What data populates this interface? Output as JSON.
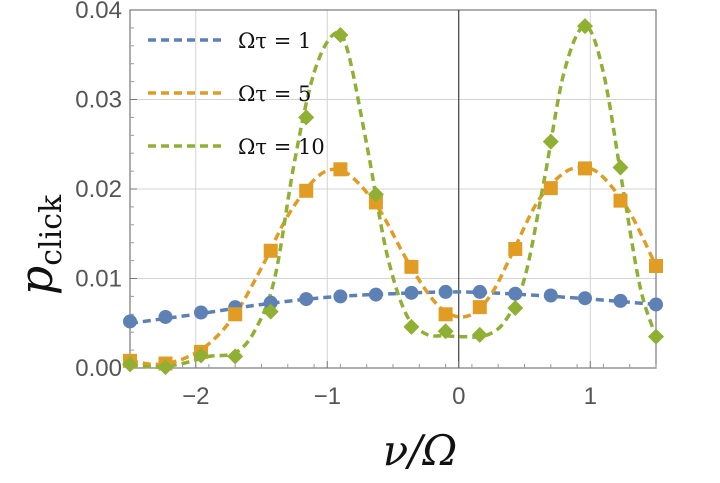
{
  "chart_data": {
    "type": "line",
    "title": "",
    "xlabel": "ν/Ω",
    "ylabel": "p",
    "ylabel_subscript": "click",
    "xlim": [
      -2.5,
      1.5
    ],
    "ylim": [
      0.0,
      0.04
    ],
    "xticks": [
      -2,
      -1,
      0,
      1
    ],
    "xtick_labels": [
      "−2",
      "−1",
      "0",
      "1"
    ],
    "yticks": [
      0.0,
      0.01,
      0.02,
      0.03,
      0.04
    ],
    "ytick_labels": [
      "0.00",
      "0.01",
      "0.02",
      "0.03",
      "0.04"
    ],
    "grid": true,
    "legend_position": "top-left",
    "series": [
      {
        "name": "Ωτ = 1",
        "color": "#5d81b4",
        "marker": "circle",
        "points": [
          [
            -2.5,
            0.0052
          ],
          [
            -2.23,
            0.0057
          ],
          [
            -1.96,
            0.0062
          ],
          [
            -1.7,
            0.0068
          ],
          [
            -1.43,
            0.0073
          ],
          [
            -1.16,
            0.0077
          ],
          [
            -0.9,
            0.008
          ],
          [
            -0.63,
            0.0082
          ],
          [
            -0.36,
            0.0084
          ],
          [
            -0.1,
            0.0085
          ],
          [
            0.16,
            0.0085
          ],
          [
            0.43,
            0.0083
          ],
          [
            0.7,
            0.0081
          ],
          [
            0.96,
            0.0078
          ],
          [
            1.23,
            0.0075
          ],
          [
            1.5,
            0.0071
          ]
        ],
        "curve": [
          [
            -2.5,
            0.005
          ],
          [
            -2.0,
            0.006
          ],
          [
            -1.5,
            0.0071
          ],
          [
            -1.0,
            0.0079
          ],
          [
            -0.5,
            0.0083
          ],
          [
            0.0,
            0.0085
          ],
          [
            0.5,
            0.0082
          ],
          [
            1.0,
            0.0077
          ],
          [
            1.5,
            0.0071
          ]
        ]
      },
      {
        "name": "Ωτ = 5",
        "color": "#e19c24",
        "marker": "square",
        "points": [
          [
            -2.5,
            0.0008
          ],
          [
            -2.23,
            0.0005
          ],
          [
            -1.96,
            0.0018
          ],
          [
            -1.7,
            0.006
          ],
          [
            -1.43,
            0.0131
          ],
          [
            -1.16,
            0.0198
          ],
          [
            -0.9,
            0.0222
          ],
          [
            -0.63,
            0.0185
          ],
          [
            -0.36,
            0.0113
          ],
          [
            -0.1,
            0.006
          ],
          [
            0.16,
            0.0068
          ],
          [
            0.43,
            0.0133
          ],
          [
            0.7,
            0.0201
          ],
          [
            0.96,
            0.0223
          ],
          [
            1.23,
            0.0187
          ],
          [
            1.5,
            0.0114
          ]
        ],
        "curve": [
          [
            -2.5,
            0.0008
          ],
          [
            -2.3,
            0.0004
          ],
          [
            -2.1,
            0.001
          ],
          [
            -1.9,
            0.0027
          ],
          [
            -1.7,
            0.006
          ],
          [
            -1.5,
            0.0112
          ],
          [
            -1.3,
            0.017
          ],
          [
            -1.1,
            0.021
          ],
          [
            -0.95,
            0.0222
          ],
          [
            -0.8,
            0.0212
          ],
          [
            -0.6,
            0.0176
          ],
          [
            -0.4,
            0.0122
          ],
          [
            -0.2,
            0.0077
          ],
          [
            -0.05,
            0.0059
          ],
          [
            0.1,
            0.006
          ],
          [
            0.25,
            0.0083
          ],
          [
            0.4,
            0.0126
          ],
          [
            0.6,
            0.0186
          ],
          [
            0.8,
            0.0218
          ],
          [
            0.96,
            0.0224
          ],
          [
            1.1,
            0.0213
          ],
          [
            1.3,
            0.0174
          ],
          [
            1.5,
            0.0114
          ]
        ]
      },
      {
        "name": "Ωτ = 10",
        "color": "#8fb032",
        "marker": "diamond",
        "points": [
          [
            -2.5,
            0.0004
          ],
          [
            -2.23,
            0.0001
          ],
          [
            -1.96,
            0.0014
          ],
          [
            -1.7,
            0.0013
          ],
          [
            -1.43,
            0.0063
          ],
          [
            -1.16,
            0.028
          ],
          [
            -0.9,
            0.0372
          ],
          [
            -0.63,
            0.0194
          ],
          [
            -0.36,
            0.0046
          ],
          [
            -0.1,
            0.0041
          ],
          [
            0.16,
            0.0037
          ],
          [
            0.43,
            0.0067
          ],
          [
            0.7,
            0.0253
          ],
          [
            0.96,
            0.0382
          ],
          [
            1.23,
            0.0224
          ],
          [
            1.5,
            0.0035
          ]
        ],
        "curve": [
          [
            -2.5,
            0.0004
          ],
          [
            -2.3,
            0.0001
          ],
          [
            -2.1,
            0.0005
          ],
          [
            -1.9,
            0.0013
          ],
          [
            -1.7,
            0.0017
          ],
          [
            -1.55,
            0.0042
          ],
          [
            -1.4,
            0.01
          ],
          [
            -1.25,
            0.023
          ],
          [
            -1.1,
            0.033
          ],
          [
            -0.95,
            0.0373
          ],
          [
            -0.85,
            0.0357
          ],
          [
            -0.7,
            0.025
          ],
          [
            -0.55,
            0.013
          ],
          [
            -0.4,
            0.006
          ],
          [
            -0.25,
            0.0038
          ],
          [
            -0.1,
            0.0036
          ],
          [
            0.05,
            0.0035
          ],
          [
            0.2,
            0.0036
          ],
          [
            0.35,
            0.0052
          ],
          [
            0.5,
            0.01
          ],
          [
            0.65,
            0.021
          ],
          [
            0.8,
            0.033
          ],
          [
            0.96,
            0.0382
          ],
          [
            1.1,
            0.033
          ],
          [
            1.25,
            0.02
          ],
          [
            1.38,
            0.009
          ],
          [
            1.5,
            0.0035
          ]
        ]
      }
    ]
  }
}
